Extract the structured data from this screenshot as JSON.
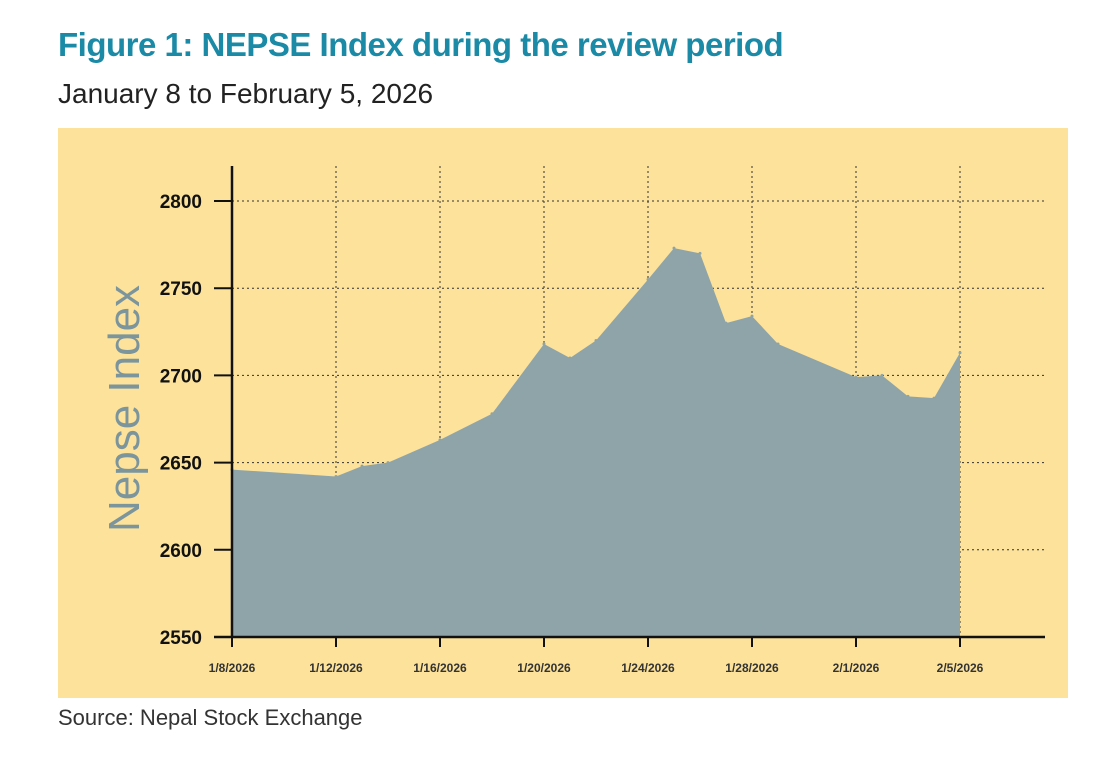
{
  "chart_data": {
    "type": "area",
    "title": "Figure 1: NEPSE Index during the review period",
    "subtitle": "January 8 to February 5, 2026",
    "xlabel": "",
    "ylabel": "Nepse Index",
    "source": "Source: Nepal Stock Exchange",
    "ylim": [
      2550,
      2820
    ],
    "yticks": [
      2550,
      2600,
      2650,
      2700,
      2750,
      2800
    ],
    "xlim_days": [
      0,
      32
    ],
    "xticks": [
      {
        "day": 0,
        "label": "1/8/2026"
      },
      {
        "day": 4,
        "label": "1/12/2026"
      },
      {
        "day": 8,
        "label": "1/16/2026"
      },
      {
        "day": 12,
        "label": "1/20/2026"
      },
      {
        "day": 16,
        "label": "1/24/2026"
      },
      {
        "day": 20,
        "label": "1/28/2026"
      },
      {
        "day": 24,
        "label": "2/1/2026"
      },
      {
        "day": 28,
        "label": "2/5/2026"
      }
    ],
    "grid": true,
    "colors": {
      "area": "#8fa4a8",
      "background": "#fce29a",
      "title": "#1a8aa6",
      "ylabel": "#7c959d"
    },
    "series": [
      {
        "name": "NEPSE Index",
        "x": [
          0,
          4,
          5,
          6,
          8,
          10,
          12,
          13,
          14,
          16,
          17,
          18,
          19,
          20,
          21,
          24,
          25,
          26,
          27,
          28
        ],
        "y": [
          2646,
          2642,
          2648,
          2650,
          2663,
          2678,
          2718,
          2710,
          2720,
          2755,
          2773,
          2770,
          2730,
          2734,
          2718,
          2699,
          2700,
          2688,
          2687,
          2713
        ]
      }
    ]
  }
}
